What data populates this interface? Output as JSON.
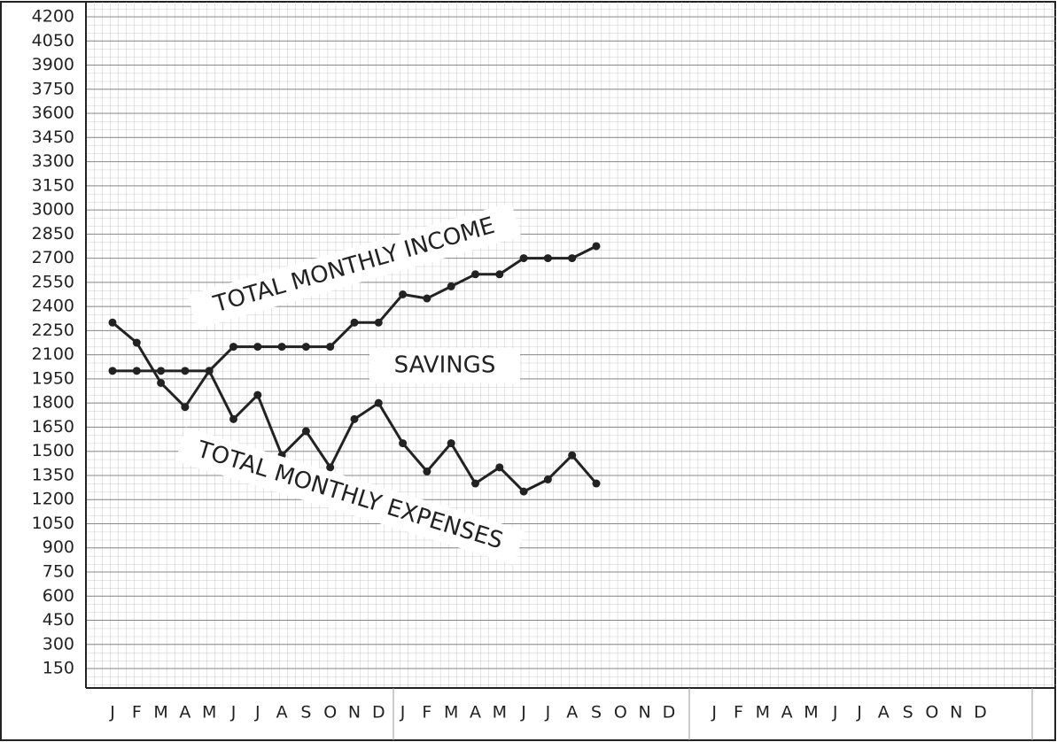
{
  "chart_data": {
    "type": "line",
    "categories": [
      "J",
      "F",
      "M",
      "A",
      "M",
      "J",
      "J",
      "A",
      "S",
      "O",
      "N",
      "D",
      "J",
      "F",
      "M",
      "A",
      "M",
      "J",
      "J",
      "A",
      "S",
      "O",
      "N",
      "D",
      "J",
      "F",
      "M",
      "A",
      "M",
      "J",
      "J",
      "A",
      "S",
      "O",
      "N",
      "D"
    ],
    "series": [
      {
        "name": "TOTAL MONTHLY INCOME",
        "color": "#222222",
        "values": [
          2000,
          2000,
          2000,
          2000,
          2000,
          2150,
          2150,
          2150,
          2150,
          2150,
          2300,
          2300,
          2475,
          2450,
          2525,
          2600,
          2600,
          2700,
          2700,
          2700,
          2775,
          null,
          null,
          null,
          null,
          null,
          null,
          null,
          null,
          null,
          null,
          null,
          null,
          null,
          null,
          null
        ]
      },
      {
        "name": "TOTAL MONTHLY EXPENSES",
        "color": "#222222",
        "values": [
          2300,
          2175,
          1925,
          1775,
          2000,
          1700,
          1850,
          1475,
          1625,
          1400,
          1700,
          1800,
          1550,
          1375,
          1550,
          1300,
          1400,
          1250,
          1325,
          1475,
          1300,
          null,
          null,
          null,
          null,
          null,
          null,
          null,
          null,
          null,
          null,
          null,
          null,
          null,
          null,
          null
        ]
      }
    ],
    "annotations": [
      "SAVINGS"
    ],
    "ylim": [
      0,
      4200
    ],
    "yticks": [
      150,
      300,
      450,
      600,
      750,
      900,
      1050,
      1200,
      1350,
      1500,
      1650,
      1800,
      1950,
      2100,
      2250,
      2400,
      2550,
      2700,
      2850,
      3000,
      3150,
      3300,
      3450,
      3600,
      3750,
      3900,
      4050,
      4200
    ],
    "grid": true
  }
}
